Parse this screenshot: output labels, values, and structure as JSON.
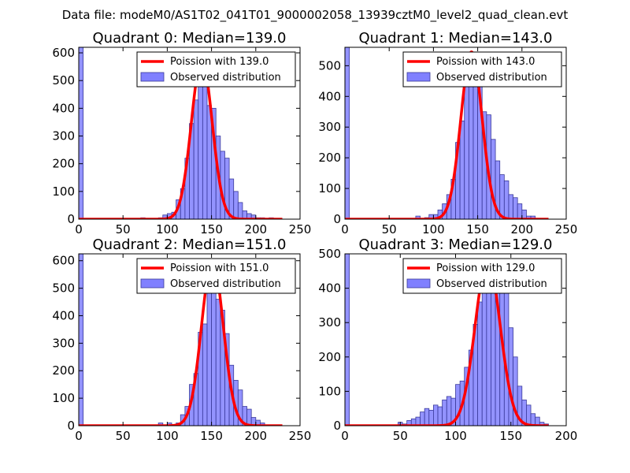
{
  "figure": {
    "suptitle": "Data file: modeM0/AS1T02_041T01_9000002058_13939cztM0_level2_quad_clean.evt"
  },
  "colors": {
    "bar_fill": "#8080ff",
    "bar_edge": "#3a3a9a",
    "model_line": "#ff0000",
    "axis": "#000000"
  },
  "chart_data": [
    {
      "type": "bar",
      "title": "Quadrant 0: Median=139.0",
      "xlim": [
        0,
        250
      ],
      "ylim": [
        0,
        620
      ],
      "xticks": [
        0,
        50,
        100,
        150,
        200,
        250
      ],
      "yticks": [
        0,
        100,
        200,
        300,
        400,
        500,
        600
      ],
      "bin_width": 5,
      "histogram": {
        "name": "Observed distribution",
        "bins": [
          [
            0,
            620
          ],
          [
            70,
            5
          ],
          [
            90,
            5
          ],
          [
            95,
            15
          ],
          [
            100,
            20
          ],
          [
            105,
            25
          ],
          [
            110,
            70
          ],
          [
            115,
            110
          ],
          [
            120,
            220
          ],
          [
            125,
            345
          ],
          [
            130,
            430
          ],
          [
            135,
            580
          ],
          [
            140,
            510
          ],
          [
            145,
            410
          ],
          [
            150,
            400
          ],
          [
            155,
            300
          ],
          [
            160,
            245
          ],
          [
            165,
            220
          ],
          [
            170,
            145
          ],
          [
            175,
            100
          ],
          [
            180,
            60
          ],
          [
            185,
            30
          ],
          [
            190,
            20
          ],
          [
            195,
            15
          ],
          [
            200,
            5
          ],
          [
            205,
            5
          ],
          [
            215,
            5
          ]
        ]
      },
      "model": {
        "name": "Poission with 139.0",
        "mean": 139.0,
        "peak": 575
      },
      "legend": {
        "placement": "top-right",
        "entries": [
          "Poission with 139.0",
          "Observed distribution"
        ]
      }
    },
    {
      "type": "bar",
      "title": "Quadrant 1: Median=143.0",
      "xlim": [
        0,
        250
      ],
      "ylim": [
        0,
        560
      ],
      "xticks": [
        0,
        50,
        100,
        150,
        200,
        250
      ],
      "yticks": [
        0,
        100,
        200,
        300,
        400,
        500
      ],
      "bin_width": 5,
      "histogram": {
        "name": "Observed distribution",
        "bins": [
          [
            0,
            560
          ],
          [
            80,
            10
          ],
          [
            90,
            5
          ],
          [
            95,
            15
          ],
          [
            100,
            15
          ],
          [
            105,
            30
          ],
          [
            110,
            50
          ],
          [
            115,
            80
          ],
          [
            120,
            130
          ],
          [
            125,
            250
          ],
          [
            130,
            320
          ],
          [
            135,
            450
          ],
          [
            140,
            480
          ],
          [
            145,
            540
          ],
          [
            150,
            490
          ],
          [
            155,
            350
          ],
          [
            160,
            340
          ],
          [
            165,
            260
          ],
          [
            170,
            190
          ],
          [
            175,
            145
          ],
          [
            180,
            125
          ],
          [
            185,
            80
          ],
          [
            190,
            70
          ],
          [
            195,
            50
          ],
          [
            200,
            30
          ],
          [
            205,
            10
          ],
          [
            210,
            10
          ]
        ]
      },
      "model": {
        "name": "Poission with 143.0",
        "mean": 143.0,
        "peak": 545
      },
      "legend": {
        "placement": "top-right",
        "entries": [
          "Poission with 143.0",
          "Observed distribution"
        ]
      }
    },
    {
      "type": "bar",
      "title": "Quadrant 2: Median=151.0",
      "xlim": [
        0,
        250
      ],
      "ylim": [
        0,
        625
      ],
      "xticks": [
        0,
        50,
        100,
        150,
        200,
        250
      ],
      "yticks": [
        0,
        100,
        200,
        300,
        400,
        500,
        600
      ],
      "bin_width": 5,
      "histogram": {
        "name": "Observed distribution",
        "bins": [
          [
            0,
            625
          ],
          [
            90,
            10
          ],
          [
            100,
            10
          ],
          [
            110,
            10
          ],
          [
            115,
            40
          ],
          [
            120,
            70
          ],
          [
            125,
            150
          ],
          [
            130,
            190
          ],
          [
            135,
            340
          ],
          [
            140,
            370
          ],
          [
            145,
            550
          ],
          [
            150,
            580
          ],
          [
            155,
            460
          ],
          [
            160,
            420
          ],
          [
            165,
            335
          ],
          [
            170,
            220
          ],
          [
            175,
            165
          ],
          [
            180,
            130
          ],
          [
            185,
            70
          ],
          [
            190,
            60
          ],
          [
            195,
            30
          ],
          [
            200,
            20
          ],
          [
            205,
            10
          ]
        ]
      },
      "model": {
        "name": "Poission with 151.0",
        "mean": 151.0,
        "peak": 600
      },
      "legend": {
        "placement": "top-right",
        "entries": [
          "Poission with 151.0",
          "Observed distribution"
        ]
      }
    },
    {
      "type": "bar",
      "title": "Quadrant 3: Median=129.0",
      "xlim": [
        0,
        200
      ],
      "ylim": [
        0,
        500
      ],
      "xticks": [
        0,
        50,
        100,
        150,
        200
      ],
      "yticks": [
        0,
        100,
        200,
        300,
        400,
        500
      ],
      "bin_width": 4,
      "histogram": {
        "name": "Observed distribution",
        "bins": [
          [
            0,
            500
          ],
          [
            48,
            10
          ],
          [
            52,
            5
          ],
          [
            56,
            15
          ],
          [
            60,
            20
          ],
          [
            64,
            25
          ],
          [
            68,
            40
          ],
          [
            72,
            50
          ],
          [
            76,
            45
          ],
          [
            80,
            60
          ],
          [
            84,
            55
          ],
          [
            88,
            75
          ],
          [
            92,
            85
          ],
          [
            96,
            80
          ],
          [
            100,
            120
          ],
          [
            104,
            130
          ],
          [
            108,
            170
          ],
          [
            112,
            220
          ],
          [
            116,
            295
          ],
          [
            120,
            360
          ],
          [
            124,
            450
          ],
          [
            128,
            430
          ],
          [
            132,
            460
          ],
          [
            136,
            440
          ],
          [
            140,
            410
          ],
          [
            144,
            390
          ],
          [
            148,
            285
          ],
          [
            152,
            200
          ],
          [
            156,
            115
          ],
          [
            160,
            75
          ],
          [
            164,
            60
          ],
          [
            168,
            35
          ],
          [
            172,
            25
          ],
          [
            176,
            10
          ],
          [
            180,
            5
          ]
        ]
      },
      "model": {
        "name": "Poission with 129.0",
        "mean": 129.0,
        "peak": 480
      },
      "legend": {
        "placement": "top-right",
        "entries": [
          "Poission with 129.0",
          "Observed distribution"
        ]
      }
    }
  ]
}
